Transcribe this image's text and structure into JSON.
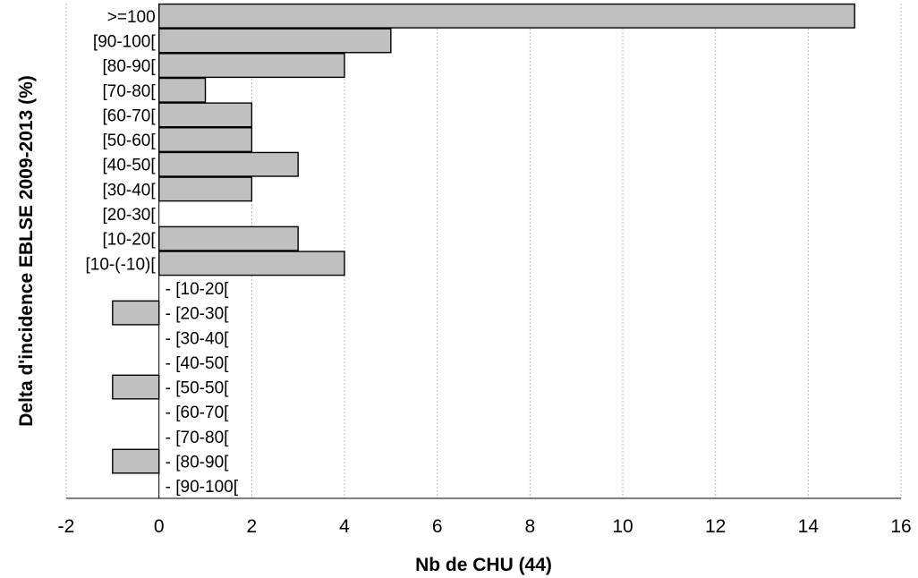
{
  "chart_data": {
    "type": "bar",
    "orientation": "horizontal",
    "title": "",
    "xlabel": "Nb de CHU (44)",
    "ylabel": "Delta d'incidence EBLSE 2009-2013 (%)",
    "xlim": [
      -2,
      16
    ],
    "x_ticks": [
      "-2",
      "0",
      "2",
      "4",
      "6",
      "8",
      "10",
      "12",
      "14",
      "16"
    ],
    "grid": "vertical dashed",
    "legend": "none",
    "bar_color": "#c0c0c0",
    "categories": [
      ">=100",
      "[90-100[",
      "[80-90[",
      "[70-80[",
      "[60-70[",
      "[50-60[",
      "[40-50[",
      "[30-40[",
      "[20-30[",
      "[10-20[",
      "[10-(-10)[",
      "- [10-20[",
      "- [20-30[",
      "- [30-40[",
      "- [40-50[",
      "- [50-50[",
      "- [60-70[",
      "- [70-80[",
      "- [80-90[",
      "- [90-100["
    ],
    "values": [
      15,
      5,
      4,
      1,
      2,
      2,
      3,
      2,
      0,
      3,
      4,
      0,
      -1,
      0,
      0,
      -1,
      0,
      0,
      -1,
      0
    ]
  }
}
